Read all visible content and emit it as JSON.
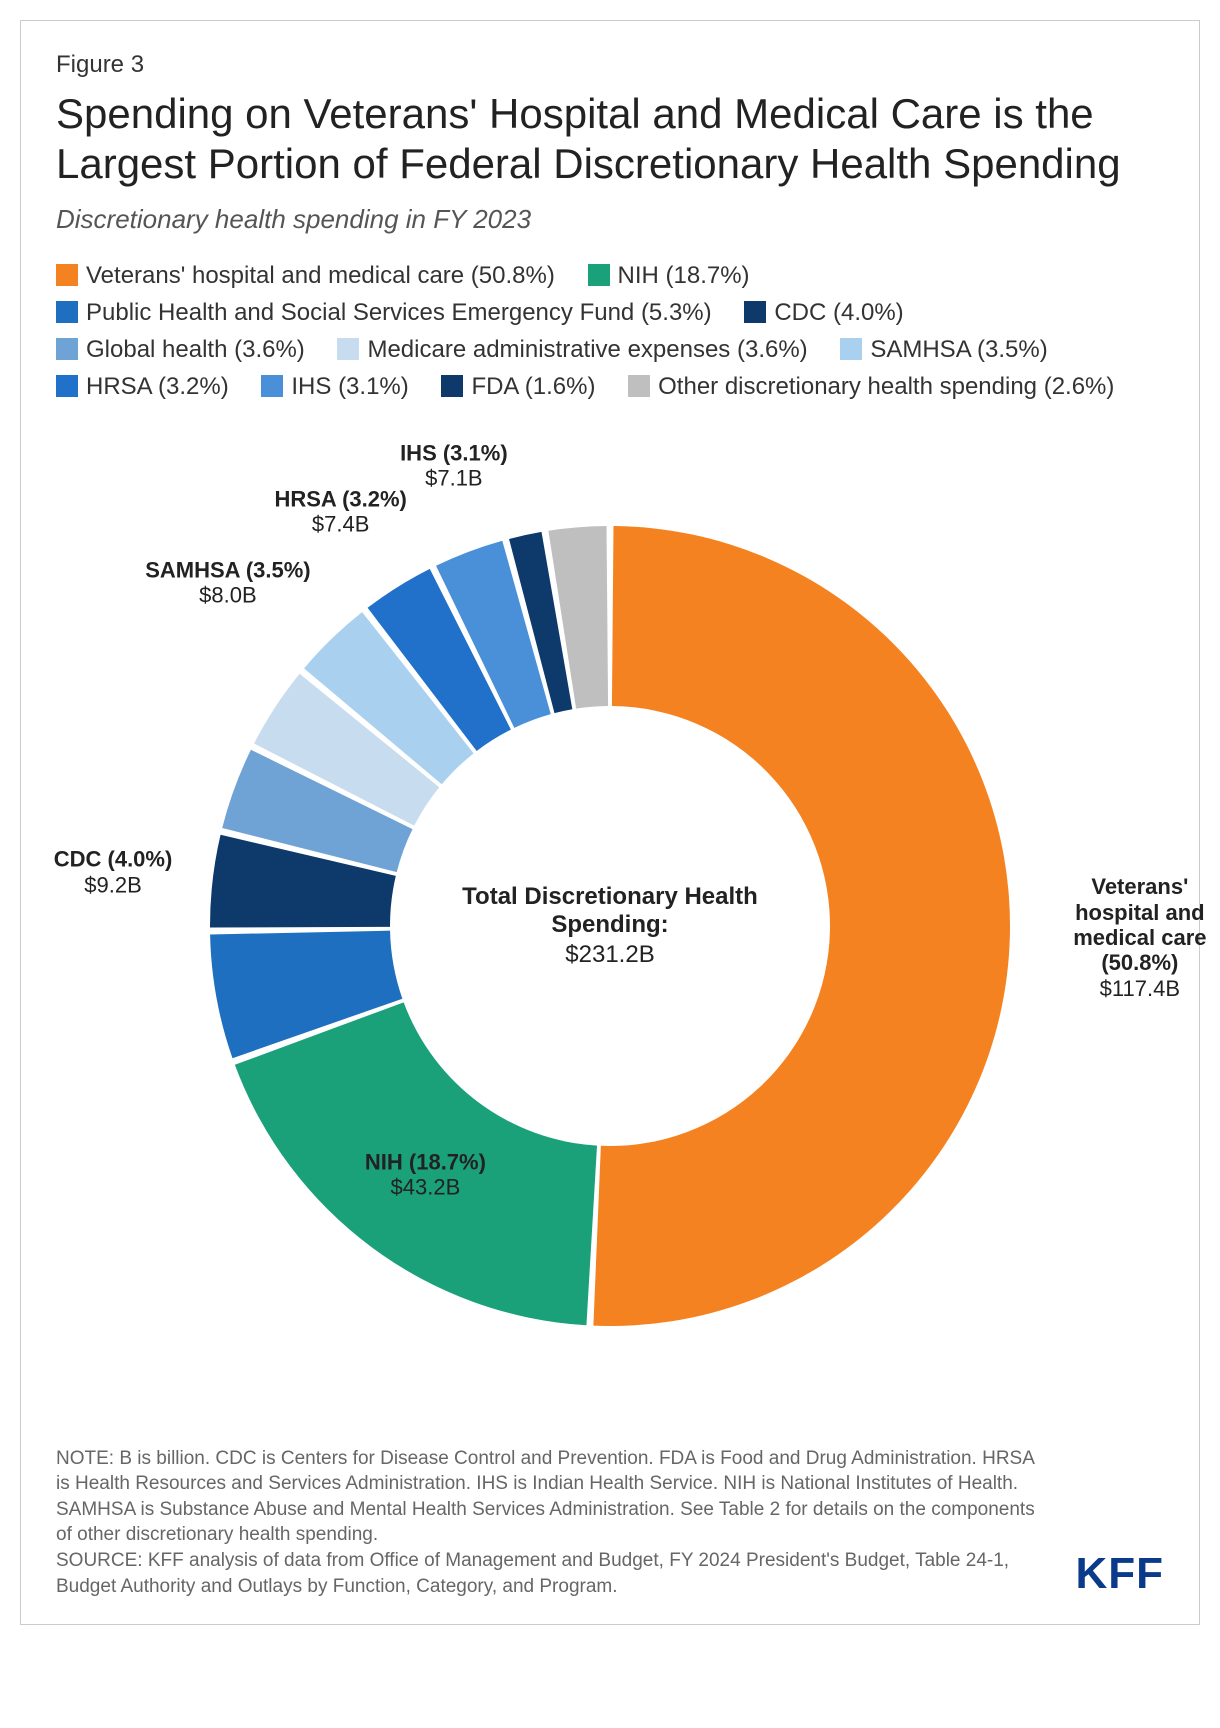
{
  "figure_number": "Figure 3",
  "title": "Spending on Veterans' Hospital and Medical Care is the Largest Portion of Federal Discretionary Health Spending",
  "subtitle": "Discretionary health spending in FY 2023",
  "center": {
    "title": "Total Discretionary Health Spending:",
    "value": "$231.2B"
  },
  "chart": {
    "type": "donut",
    "background_color": "#ffffff",
    "inner_radius_ratio": 0.55,
    "slice_gap_deg": 1.0,
    "slices": [
      {
        "name": "Veterans' hospital and medical care",
        "percent": 50.8,
        "value": "$117.4B",
        "color": "#f58220",
        "legend_label": "Veterans' hospital and medical care (50.8%)",
        "callout": "Veterans' hospital and medical care (50.8%)",
        "label_pos": "outside"
      },
      {
        "name": "NIH",
        "percent": 18.7,
        "value": "$43.2B",
        "color": "#1aa179",
        "legend_label": "NIH (18.7%)",
        "callout": "NIH (18.7%)",
        "label_pos": "inside"
      },
      {
        "name": "Public Health and Social Services Emergency Fund",
        "percent": 5.3,
        "value": "",
        "color": "#1f6fc1",
        "legend_label": "Public Health and Social Services Emergency Fund (5.3%)",
        "callout": "",
        "label_pos": "none"
      },
      {
        "name": "CDC",
        "percent": 4.0,
        "value": "$9.2B",
        "color": "#0d3a6b",
        "legend_label": "CDC (4.0%)",
        "callout": "CDC (4.0%)",
        "label_pos": "outside"
      },
      {
        "name": "Global health",
        "percent": 3.6,
        "value": "",
        "color": "#6fa3d6",
        "legend_label": "Global health (3.6%)",
        "callout": "",
        "label_pos": "none"
      },
      {
        "name": "Medicare administrative expenses",
        "percent": 3.6,
        "value": "",
        "color": "#c7dcef",
        "legend_label": "Medicare administrative expenses (3.6%)",
        "callout": "",
        "label_pos": "none"
      },
      {
        "name": "SAMHSA",
        "percent": 3.5,
        "value": "$8.0B",
        "color": "#a9d1ef",
        "legend_label": "SAMHSA (3.5%)",
        "callout": "SAMHSA (3.5%)",
        "label_pos": "outside"
      },
      {
        "name": "HRSA",
        "percent": 3.2,
        "value": "$7.4B",
        "color": "#2170c9",
        "legend_label": "HRSA (3.2%)",
        "callout": "HRSA (3.2%)",
        "label_pos": "outside"
      },
      {
        "name": "IHS",
        "percent": 3.1,
        "value": "$7.1B",
        "color": "#4a90d9",
        "legend_label": "IHS (3.1%)",
        "callout": "IHS (3.1%)",
        "label_pos": "outside"
      },
      {
        "name": "FDA",
        "percent": 1.6,
        "value": "",
        "color": "#0d3a6b",
        "legend_label": "FDA (1.6%)",
        "callout": "",
        "label_pos": "none"
      },
      {
        "name": "Other discretionary health spending",
        "percent": 2.6,
        "value": "",
        "color": "#bfbfbf",
        "legend_label": "Other discretionary health spending (2.6%)",
        "callout": "",
        "label_pos": "none"
      }
    ]
  },
  "note": "NOTE: B is billion. CDC is Centers for Disease Control and Prevention. FDA is Food and Drug Administration. HRSA is Health Resources and Services Administration. IHS is Indian Health Service. NIH is National Institutes of Health. SAMHSA is Substance Abuse and Mental Health Services Administration. See Table 2 for details on the components of other discretionary health spending.",
  "source": "SOURCE: KFF analysis of data from Office of Management and Budget, FY 2024 President's Budget, Table 24-1, Budget Authority and Outlays by Function, Category, and Program.",
  "logo": "KFF"
}
